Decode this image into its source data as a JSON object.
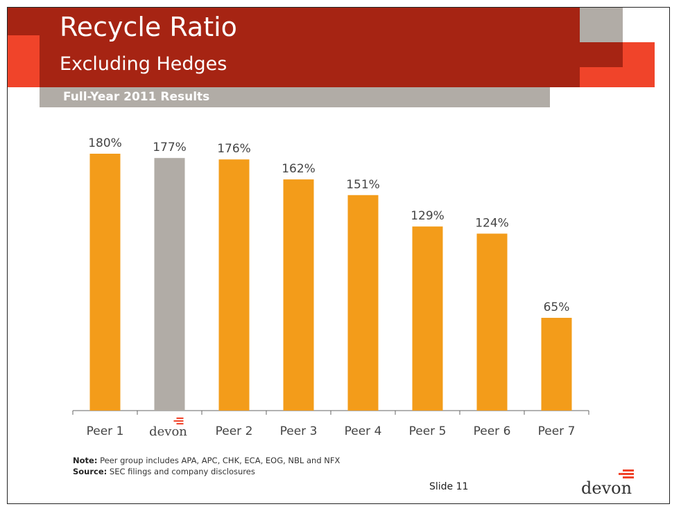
{
  "slide": {
    "title": "Recycle Ratio",
    "subtitle": "Excluding Hedges",
    "results_label": "Full-Year 2011 Results",
    "note_label": "Note:",
    "note_text": "Peer group includes APA, APC, CHK, ECA, EOG, NBL and NFX",
    "source_label": "Source:",
    "source_text": "SEC filings and company disclosures",
    "slide_number": "Slide 11",
    "logo_text": "devon"
  },
  "colors": {
    "header": "#a62413",
    "accent_orange": "#f0442a",
    "bar_peer": "#f39c1a",
    "bar_devon": "#b1aca6",
    "grey": "#b1aca6"
  },
  "chart_data": {
    "type": "bar",
    "categories": [
      "Peer 1",
      "devon",
      "Peer 2",
      "Peer 3",
      "Peer 4",
      "Peer 5",
      "Peer 6",
      "Peer 7"
    ],
    "values": [
      180,
      177,
      176,
      162,
      151,
      129,
      124,
      65
    ],
    "labels": [
      "180%",
      "177%",
      "176%",
      "162%",
      "151%",
      "129%",
      "124%",
      "65%"
    ],
    "highlight_category": "devon",
    "ylim": [
      0,
      180
    ],
    "grid": false,
    "legend": "none"
  }
}
